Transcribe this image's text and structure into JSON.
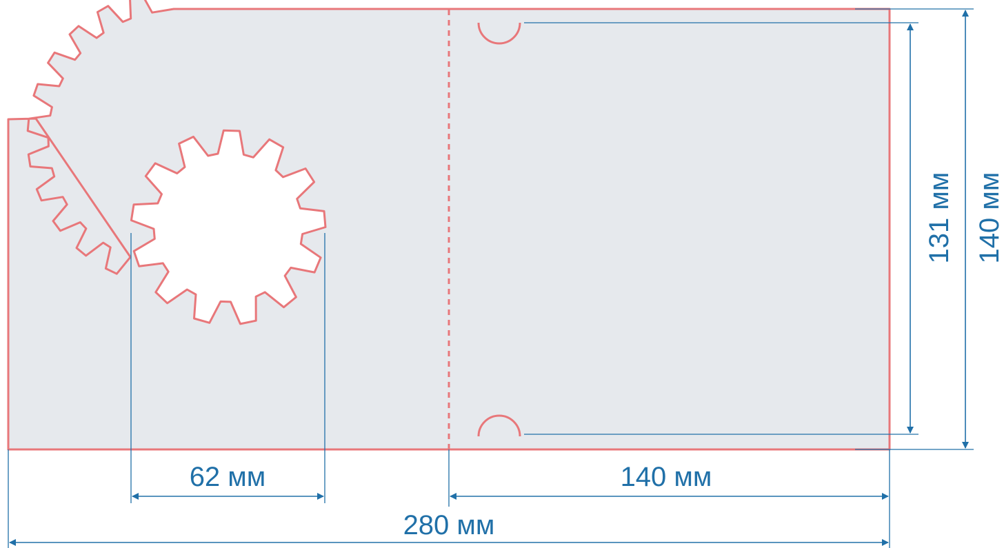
{
  "dimensions": {
    "total_width": "280 мм",
    "panel_width": "140 мм",
    "gear_diameter": "62 мм",
    "inner_height": "131 мм",
    "total_height": "140 мм"
  },
  "colors": {
    "cut_line": "#e8777a",
    "panel_fill": "#e6e9ed",
    "dimension": "#2070a8",
    "cutout_fill": "#ffffff"
  }
}
